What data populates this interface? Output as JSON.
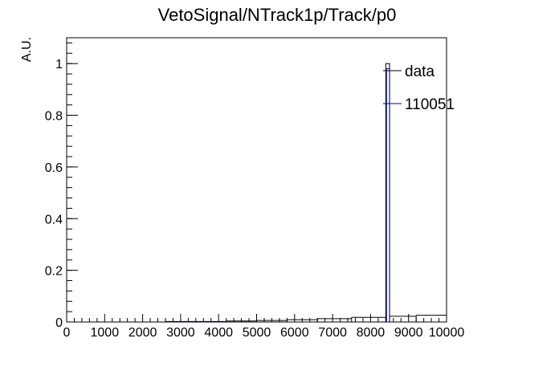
{
  "chart_data": {
    "type": "histogram",
    "title": "VetoSignal/NTrack1p/Track/p0",
    "xlabel": "",
    "ylabel": "A.U.",
    "xlim": [
      0,
      10000
    ],
    "ylim": [
      0,
      1.1
    ],
    "x_ticks": [
      "0",
      "1000",
      "2000",
      "3000",
      "4000",
      "5000",
      "6000",
      "7000",
      "8000",
      "9000",
      "10000"
    ],
    "y_ticks": [
      "0",
      "0.2",
      "0.4",
      "0.6",
      "0.8",
      "1"
    ],
    "legend": [
      {
        "label": "data",
        "color": "#000000"
      },
      {
        "label": "110051",
        "color": "#000080"
      }
    ],
    "series": [
      {
        "name": "data",
        "color": "#000000",
        "style": "step",
        "bins": [
          {
            "x0": 0,
            "x1": 4200,
            "y": 0.0
          },
          {
            "x0": 4200,
            "x1": 5000,
            "y": 0.004
          },
          {
            "x0": 5000,
            "x1": 5800,
            "y": 0.006
          },
          {
            "x0": 5800,
            "x1": 6600,
            "y": 0.009
          },
          {
            "x0": 6600,
            "x1": 7500,
            "y": 0.013
          },
          {
            "x0": 7500,
            "x1": 8400,
            "y": 0.018
          },
          {
            "x0": 8400,
            "x1": 8500,
            "y": 1.0
          },
          {
            "x0": 8500,
            "x1": 9200,
            "y": 0.022
          },
          {
            "x0": 9200,
            "x1": 10000,
            "y": 0.026
          }
        ]
      },
      {
        "name": "110051",
        "color": "#000080",
        "style": "step",
        "bins": [
          {
            "x0": 2600,
            "x1": 4200,
            "y": 0.002
          },
          {
            "x0": 8420,
            "x1": 8500,
            "y": 0.98
          }
        ]
      }
    ]
  }
}
